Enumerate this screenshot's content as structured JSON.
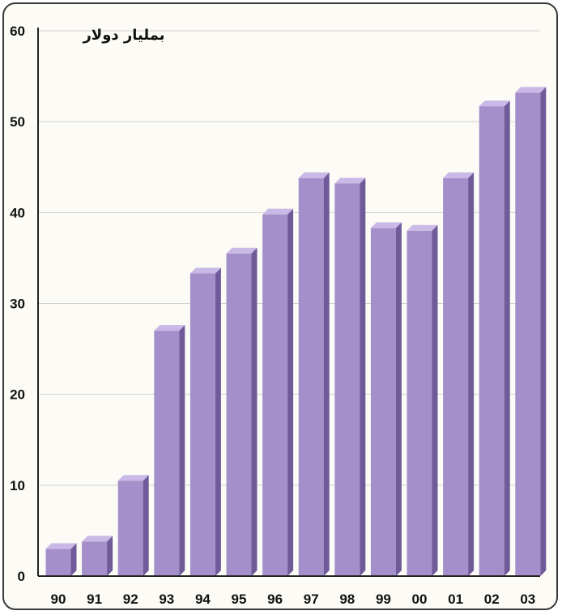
{
  "chart_data": {
    "type": "bar",
    "title": "",
    "unit_label": "بمليار دولار",
    "xlabel": "",
    "ylabel": "",
    "categories": [
      "90",
      "91",
      "92",
      "93",
      "94",
      "95",
      "96",
      "97",
      "98",
      "99",
      "00",
      "01",
      "02",
      "03"
    ],
    "values": [
      3,
      3.8,
      10.5,
      27,
      33.3,
      35.5,
      39.8,
      43.8,
      43.2,
      38.3,
      38,
      43.8,
      51.7,
      53.2
    ],
    "ylim": [
      0,
      60
    ],
    "yticks": [
      0,
      10,
      20,
      30,
      40,
      50,
      60
    ],
    "grid": true,
    "colors": {
      "bar_front": "#a58fca",
      "bar_side": "#6f5b9a",
      "bar_top": "#c9b9e6",
      "grid": "#cfcfcf",
      "axis": "#222222",
      "background": "#fcfbf6"
    }
  }
}
